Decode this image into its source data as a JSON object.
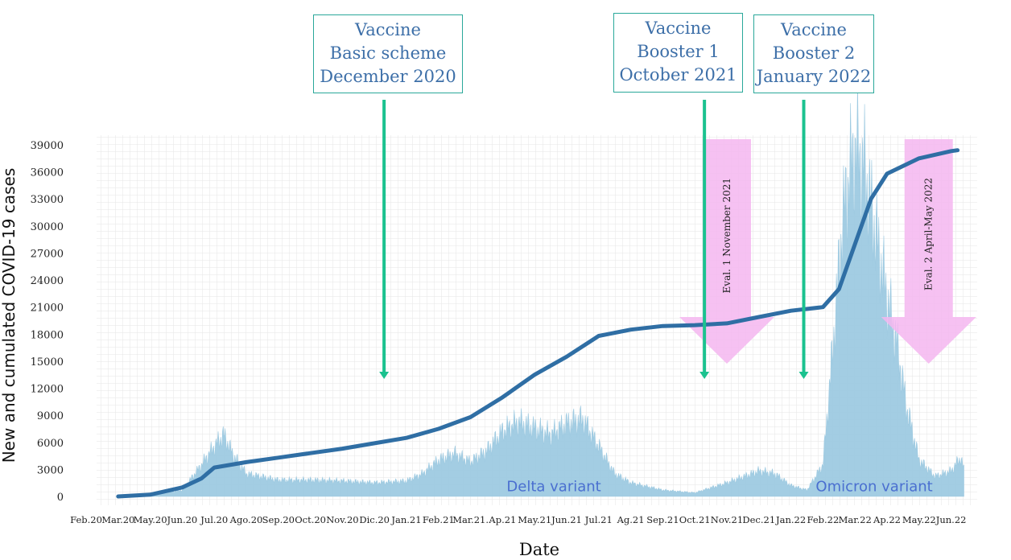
{
  "chart_data": {
    "type": "area",
    "ylabel": "New and cumulated COVID-19 cases",
    "xlabel": "Date",
    "y_ticks": [
      "0",
      "3000",
      "6000",
      "9000",
      "12000",
      "15000",
      "18000",
      "21000",
      "24000",
      "27000",
      "30000",
      "33000",
      "36000",
      "39000"
    ],
    "ylim": [
      0,
      39000
    ],
    "x_tick_labels": [
      "Feb.20",
      "Mar.20",
      "May.20",
      "Jun.20",
      "Jul.20",
      "Ago.20",
      "Sep.20",
      "Oct.20",
      "Nov.20",
      "Dic.20",
      "Jan.21",
      "Feb.21",
      "Mar.21.",
      "Ap.21",
      "May.21",
      "Jun.21",
      "Jul.21",
      "Ag.21",
      "Sep.21",
      "Oct.21",
      "Nov.21",
      "Dec.21",
      "Jan.22",
      "Feb.22",
      "Mar.22",
      "Ap.22",
      "May.22",
      "Jun.22"
    ],
    "grid": true,
    "series": [
      {
        "kind": "area",
        "color": "#9ecae1",
        "points": [
          [
            1,
            0
          ],
          [
            2,
            100
          ],
          [
            3,
            700
          ],
          [
            3.5,
            3000
          ],
          [
            4,
            5500
          ],
          [
            4.3,
            6800
          ],
          [
            4.6,
            4500
          ],
          [
            5,
            2500
          ],
          [
            6,
            1800
          ],
          [
            7,
            1800
          ],
          [
            8,
            1700
          ],
          [
            9,
            1500
          ],
          [
            10,
            1700
          ],
          [
            10.5,
            2500
          ],
          [
            11,
            4000
          ],
          [
            11.5,
            4700
          ],
          [
            12,
            3800
          ],
          [
            12.5,
            5000
          ],
          [
            13,
            7200
          ],
          [
            13.5,
            8200
          ],
          [
            14,
            7500
          ],
          [
            14.5,
            6800
          ],
          [
            15,
            8000
          ],
          [
            15.5,
            8500
          ],
          [
            16,
            5500
          ],
          [
            16.5,
            2500
          ],
          [
            17,
            1500
          ],
          [
            18,
            700
          ],
          [
            19,
            400
          ],
          [
            20,
            1500
          ],
          [
            21,
            2800
          ],
          [
            21.5,
            2500
          ],
          [
            22,
            1200
          ],
          [
            22.5,
            700
          ],
          [
            23,
            3500
          ],
          [
            23.3,
            16000
          ],
          [
            23.6,
            30000
          ],
          [
            23.8,
            35000
          ],
          [
            24,
            38500
          ],
          [
            24.3,
            36000
          ],
          [
            24.6,
            30000
          ],
          [
            25,
            22000
          ],
          [
            25.3,
            17000
          ],
          [
            25.6,
            10000
          ],
          [
            26,
            4000
          ],
          [
            26.5,
            2200
          ],
          [
            27,
            2800
          ],
          [
            27.3,
            4300
          ],
          [
            27.4,
            3000
          ]
        ]
      },
      {
        "kind": "line",
        "color": "#2f6ea4",
        "points": [
          [
            1,
            0
          ],
          [
            2,
            200
          ],
          [
            3,
            1000
          ],
          [
            3.6,
            2000
          ],
          [
            4,
            3200
          ],
          [
            5,
            3800
          ],
          [
            6,
            4300
          ],
          [
            7,
            4800
          ],
          [
            8,
            5300
          ],
          [
            9,
            5900
          ],
          [
            10,
            6500
          ],
          [
            11,
            7500
          ],
          [
            12,
            8800
          ],
          [
            13,
            11000
          ],
          [
            14,
            13500
          ],
          [
            15,
            15500
          ],
          [
            16,
            17800
          ],
          [
            17,
            18500
          ],
          [
            18,
            18900
          ],
          [
            19,
            19000
          ],
          [
            20,
            19200
          ],
          [
            21,
            19900
          ],
          [
            22,
            20600
          ],
          [
            23,
            21000
          ],
          [
            23.5,
            23000
          ],
          [
            24,
            28000
          ],
          [
            24.5,
            33000
          ],
          [
            25,
            35800
          ],
          [
            26,
            37500
          ],
          [
            27,
            38300
          ],
          [
            27.2,
            38400
          ]
        ]
      }
    ],
    "annotations": {
      "vaccines": [
        {
          "lines": [
            "Vaccine",
            "Basic scheme",
            "December 2020"
          ],
          "x": 9.3,
          "color": "#1bc28f"
        },
        {
          "lines": [
            "Vaccine",
            "Booster 1",
            "October 2021"
          ],
          "x": 19.3,
          "color": "#1bc28f"
        },
        {
          "lines": [
            "Vaccine",
            "Booster 2",
            "January 2022"
          ],
          "x": 22.4,
          "color": "#1bc28f"
        }
      ],
      "evaluations": [
        {
          "label": "Eval. 1 November 2021",
          "x": 20.0,
          "color": "#f4b6f0"
        },
        {
          "label": "Eval. 2 April-May 2022",
          "x": 26.3,
          "color": "#f4b6f0"
        }
      ],
      "variants": [
        {
          "label": "Delta variant",
          "x": 14.6,
          "y": 600,
          "color": "#4a6fd0"
        },
        {
          "label": "Omicron variant",
          "x": 24.6,
          "y": 600,
          "color": "#4a6fd0"
        }
      ]
    }
  }
}
